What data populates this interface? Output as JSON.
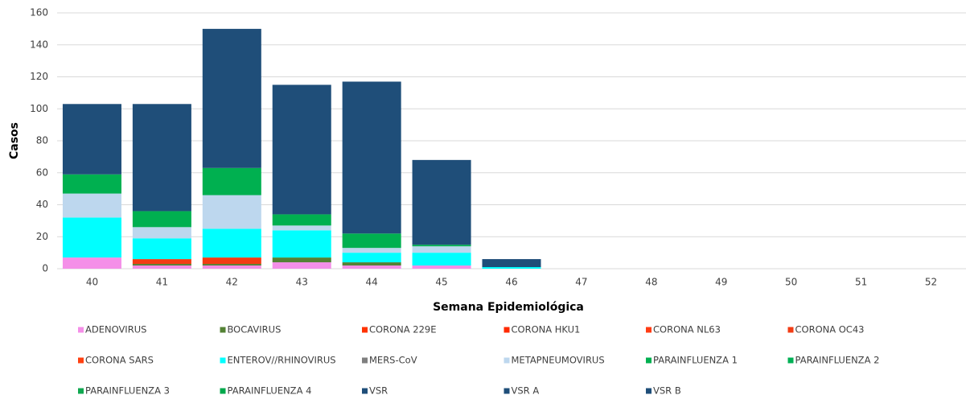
{
  "chart_data": {
    "type": "stacked-bar",
    "x_label": "Semana Epidemiológica",
    "y_label": "Casos",
    "categories": [
      "40",
      "41",
      "42",
      "43",
      "44",
      "45",
      "46",
      "47",
      "48",
      "49",
      "50",
      "51",
      "52"
    ],
    "ylim": [
      0,
      160
    ],
    "yticks": [
      0,
      20,
      40,
      60,
      80,
      100,
      120,
      140,
      160
    ],
    "grid": true,
    "series": [
      {
        "name": "ADENOVIRUS",
        "color": "#f48fe8",
        "values": [
          7,
          2,
          2,
          4,
          2,
          2,
          0,
          0,
          0,
          0,
          0,
          0,
          0
        ]
      },
      {
        "name": "BOCAVIRUS",
        "color": "#548235",
        "values": [
          0,
          1,
          1,
          3,
          2,
          0,
          0,
          0,
          0,
          0,
          0,
          0,
          0
        ]
      },
      {
        "name": "CORONA 229E",
        "color": "#ff3300",
        "values": [
          0,
          0,
          0,
          0,
          0,
          0,
          0,
          0,
          0,
          0,
          0,
          0,
          0
        ]
      },
      {
        "name": "CORONA HKU1",
        "color": "#ff2a00",
        "values": [
          0,
          0,
          0,
          0,
          0,
          0,
          0,
          0,
          0,
          0,
          0,
          0,
          0
        ]
      },
      {
        "name": "CORONA NL63",
        "color": "#ff3c14",
        "values": [
          0,
          0,
          0,
          0,
          0,
          0,
          0,
          0,
          0,
          0,
          0,
          0,
          0
        ]
      },
      {
        "name": "CORONA OC43",
        "color": "#f23c14",
        "values": [
          0,
          3,
          4,
          0,
          0,
          0,
          0,
          0,
          0,
          0,
          0,
          0,
          0
        ]
      },
      {
        "name": "CORONA SARS",
        "color": "#ff4010",
        "values": [
          0,
          0,
          0,
          0,
          0,
          0,
          0,
          0,
          0,
          0,
          0,
          0,
          0
        ]
      },
      {
        "name": "ENTEROV//RHINOVIRUS",
        "color": "#00ffff",
        "values": [
          25,
          13,
          18,
          17,
          6,
          8,
          1,
          0,
          0,
          0,
          0,
          0,
          0
        ]
      },
      {
        "name": "MERS-CoV",
        "color": "#7f7f7f",
        "values": [
          0,
          0,
          0,
          0,
          0,
          0,
          0,
          0,
          0,
          0,
          0,
          0,
          0
        ]
      },
      {
        "name": "METAPNEUMOVIRUS",
        "color": "#bdd7ee",
        "values": [
          15,
          7,
          21,
          3,
          3,
          4,
          0,
          0,
          0,
          0,
          0,
          0,
          0
        ]
      },
      {
        "name": "PARAINFLUENZA 1",
        "color": "#00b050",
        "values": [
          12,
          10,
          17,
          7,
          9,
          1,
          0,
          0,
          0,
          0,
          0,
          0,
          0
        ]
      },
      {
        "name": "PARAINFLUENZA 2",
        "color": "#00b055",
        "values": [
          0,
          0,
          0,
          0,
          0,
          0,
          0,
          0,
          0,
          0,
          0,
          0,
          0
        ]
      },
      {
        "name": "PARAINFLUENZA 3",
        "color": "#10a850",
        "values": [
          0,
          0,
          0,
          0,
          0,
          0,
          0,
          0,
          0,
          0,
          0,
          0,
          0
        ]
      },
      {
        "name": "PARAINFLUENZA 4",
        "color": "#00a84b",
        "values": [
          0,
          0,
          0,
          0,
          0,
          0,
          0,
          0,
          0,
          0,
          0,
          0,
          0
        ]
      },
      {
        "name": "VSR",
        "color": "#1f4e79",
        "values": [
          44,
          67,
          87,
          81,
          95,
          53,
          5,
          0,
          0,
          0,
          0,
          0,
          0
        ]
      },
      {
        "name": "VSR A",
        "color": "#1f4e79",
        "values": [
          0,
          0,
          0,
          0,
          0,
          0,
          0,
          0,
          0,
          0,
          0,
          0,
          0
        ]
      },
      {
        "name": "VSR B",
        "color": "#1f4e79",
        "values": [
          0,
          0,
          0,
          0,
          0,
          0,
          0,
          0,
          0,
          0,
          0,
          0,
          0
        ]
      }
    ]
  }
}
